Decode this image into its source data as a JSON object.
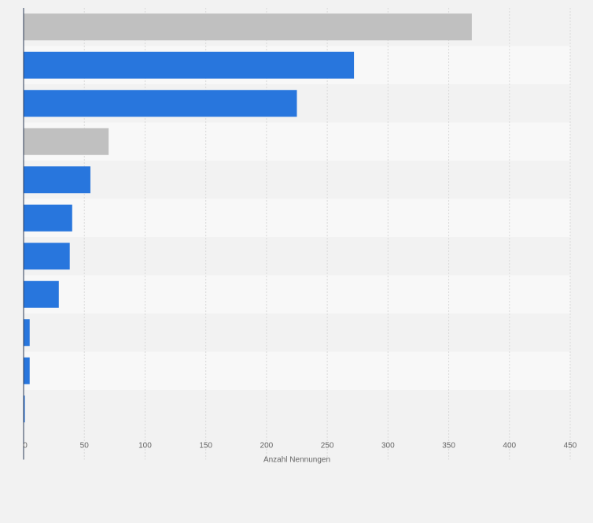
{
  "chart_data": {
    "type": "bar",
    "orientation": "horizontal",
    "title": "",
    "xlabel": "Anzahl Nennungen",
    "ylabel": "",
    "xlim": [
      0,
      450
    ],
    "xticks": [
      0,
      50,
      100,
      150,
      200,
      250,
      300,
      350,
      400,
      450
    ],
    "grid": true,
    "colors": {
      "primary": "#2876dd",
      "highlight": "#c0c0c0",
      "axis": "#2b3a55",
      "tick_text": "#666666"
    },
    "bars": [
      {
        "value": 369,
        "color": "#c0c0c0"
      },
      {
        "value": 272,
        "color": "#2876dd"
      },
      {
        "value": 225,
        "color": "#2876dd"
      },
      {
        "value": 70,
        "color": "#c0c0c0"
      },
      {
        "value": 55,
        "color": "#2876dd"
      },
      {
        "value": 40,
        "color": "#2876dd"
      },
      {
        "value": 38,
        "color": "#2876dd"
      },
      {
        "value": 29,
        "color": "#2876dd"
      },
      {
        "value": 5,
        "color": "#2876dd"
      },
      {
        "value": 5,
        "color": "#2876dd"
      },
      {
        "value": 1,
        "color": "#2876dd"
      }
    ]
  }
}
